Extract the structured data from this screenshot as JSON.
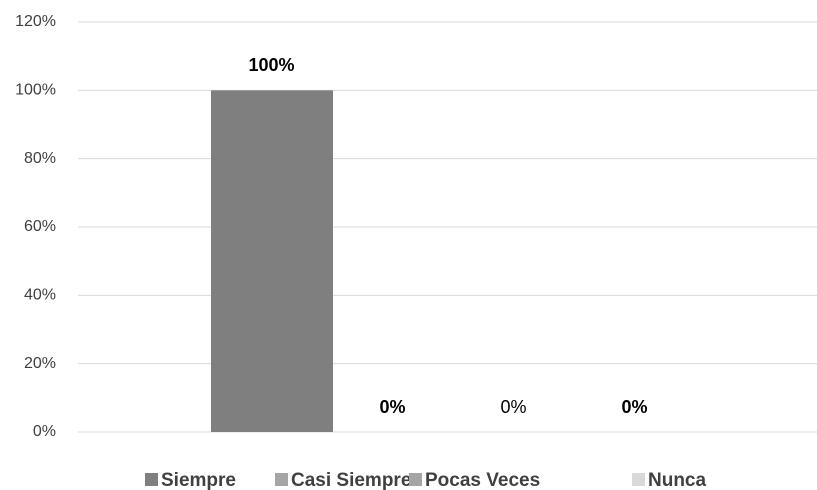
{
  "chart_data": {
    "type": "bar",
    "series": [
      {
        "name": "Siempre",
        "color": "#7f7f7f",
        "values": [
          100
        ],
        "value_labels": [
          "100%"
        ]
      },
      {
        "name": "Casi Siempre",
        "color": "#a5a5a5",
        "values": [
          0
        ],
        "value_labels": [
          "0%"
        ]
      },
      {
        "name": "Pocas Veces",
        "color": "#a5a5a5",
        "values": [
          0
        ],
        "value_labels": [
          "0%"
        ]
      },
      {
        "name": "Nunca",
        "color": "#d9d9d9",
        "values": [
          0
        ],
        "value_labels": [
          "0%"
        ]
      }
    ],
    "ylim": [
      0,
      120
    ],
    "yticks": [
      {
        "value": 0,
        "label": "0%"
      },
      {
        "value": 20,
        "label": "20%"
      },
      {
        "value": 40,
        "label": "40%"
      },
      {
        "value": 60,
        "label": "60%"
      },
      {
        "value": 80,
        "label": "80%"
      },
      {
        "value": 100,
        "label": "100%"
      },
      {
        "value": 120,
        "label": "120%"
      }
    ],
    "grid": true,
    "legend": "bottom"
  }
}
